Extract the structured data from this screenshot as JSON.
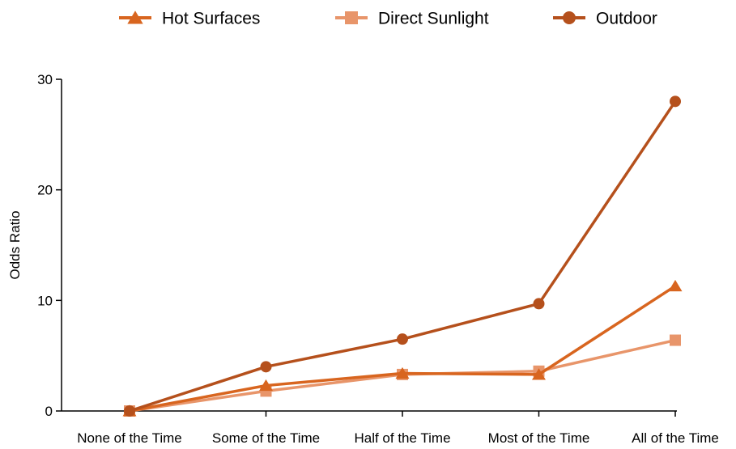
{
  "chart_data": {
    "type": "line",
    "categories": [
      "None of the Time",
      "Some of the Time",
      "Half of the Time",
      "Most of the Time",
      "All of the Time"
    ],
    "ylabel": "Odds Ratio",
    "xlabel": "",
    "ylim": [
      0,
      30
    ],
    "yticks": [
      0,
      10,
      20,
      30
    ],
    "legend_position": "top",
    "grid": false,
    "series": [
      {
        "name": "Hot Surfaces",
        "marker": "triangle",
        "color": "#D8651F",
        "values": [
          0,
          2.3,
          3.4,
          3.3,
          11.3
        ]
      },
      {
        "name": "Direct Sunlight",
        "marker": "square",
        "color": "#E8956A",
        "values": [
          0,
          1.8,
          3.3,
          3.6,
          6.4
        ]
      },
      {
        "name": "Outdoor",
        "marker": "circle",
        "color": "#B5501C",
        "values": [
          0,
          4.0,
          6.5,
          9.7,
          28.0
        ]
      }
    ]
  }
}
